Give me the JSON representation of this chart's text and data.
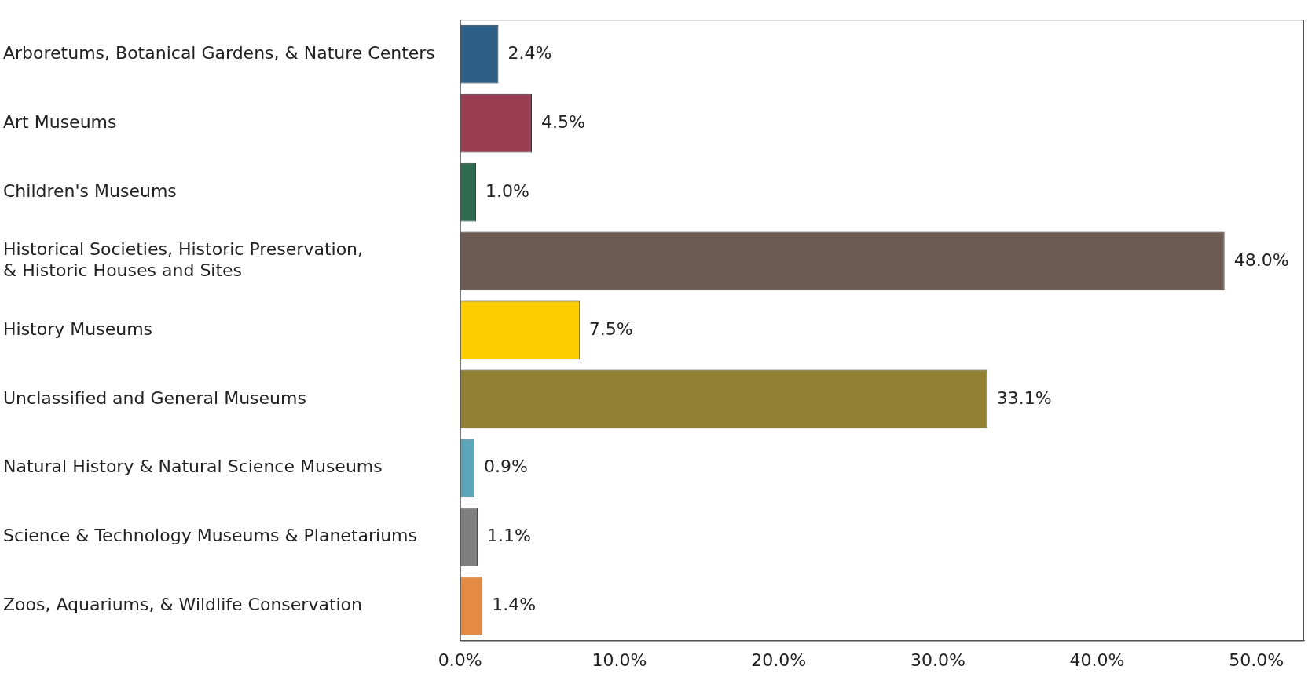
{
  "chart_data": {
    "type": "bar",
    "orientation": "horizontal",
    "categories": [
      "Arboretums, Botanical Gardens, & Nature Centers",
      "Art Museums",
      "Children's Museums",
      "Historical Societies, Historic Preservation,\n& Historic Houses and Sites",
      "History Museums",
      "Unclassified and General Museums",
      "Natural History & Natural Science Museums",
      "Science & Technology Museums & Planetariums",
      "Zoos, Aquariums, & Wildlife Conservation"
    ],
    "values": [
      2.4,
      4.5,
      1.0,
      48.0,
      7.5,
      33.1,
      0.9,
      1.1,
      1.4
    ],
    "colors": [
      "#2e5f86",
      "#9b3d52",
      "#2f6b50",
      "#6b5b50",
      "#ffcc00",
      "#928133",
      "#5fa5b8",
      "#7f7f7f",
      "#e58a43"
    ],
    "value_labels": [
      "2.4%",
      "4.5%",
      "1.0%",
      "48.0%",
      "7.5%",
      "33.1%",
      "0.9%",
      "1.1%",
      "1.4%"
    ],
    "xlim": [
      0,
      53
    ],
    "xticks": [
      {
        "value": 0,
        "label": "0.0%"
      },
      {
        "value": 10,
        "label": "10.0%"
      },
      {
        "value": 20,
        "label": "20.0%"
      },
      {
        "value": 30,
        "label": "30.0%"
      },
      {
        "value": 40,
        "label": "40.0%"
      },
      {
        "value": 50,
        "label": "50.0%"
      }
    ],
    "grid": false,
    "legend": false
  }
}
